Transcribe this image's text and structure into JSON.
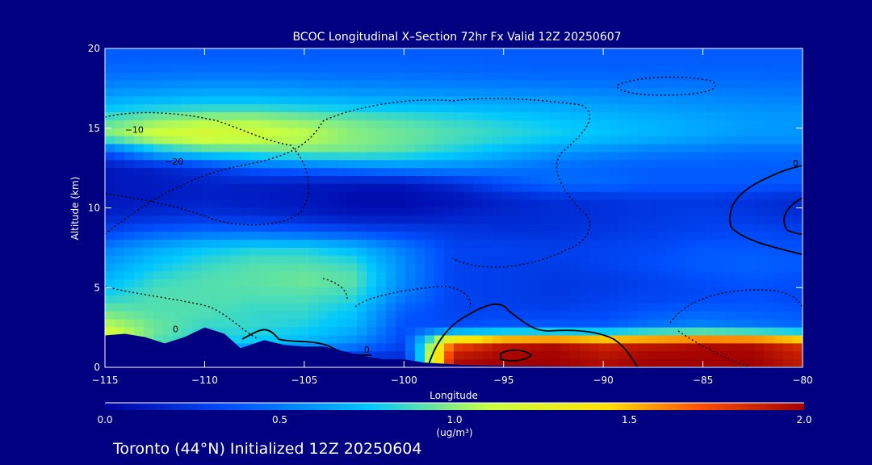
{
  "chart_data": {
    "type": "heatmap",
    "title": "BCOC Longitudinal X–Section 72hr  Fx Valid 12Z 20250607",
    "xlabel": "Longitude",
    "ylabel": "Altitude (km)",
    "xlim": [
      -115,
      -80
    ],
    "ylim": [
      0,
      20
    ],
    "x_ticks": [
      -115,
      -110,
      -105,
      -100,
      -95,
      -90,
      -85,
      -80
    ],
    "x_tick_labels": [
      "−115",
      "−110",
      "−105",
      "−100",
      "−95",
      "−90",
      "−85",
      "−80"
    ],
    "y_ticks": [
      0,
      5,
      10,
      15,
      20
    ],
    "y_tick_labels": [
      "0",
      "5",
      "10",
      "15",
      "20"
    ],
    "colorbar": {
      "min": 0.0,
      "max": 2.0,
      "ticks": [
        0.0,
        0.5,
        1.0,
        1.5,
        2.0
      ],
      "tick_labels": [
        "0.0",
        "0.5",
        "1.0",
        "1.5",
        "2.0"
      ],
      "unit_label": "(ug/m³)",
      "colors": [
        "#0000a0",
        "#0050ff",
        "#00c8ff",
        "#c8ff40",
        "#ffe000",
        "#ff5000",
        "#a00000"
      ]
    },
    "field": {
      "description_levels": "value (ug/m3) sampled on grid",
      "x": [
        -115,
        -112.5,
        -110,
        -107.5,
        -105,
        -102.5,
        -100,
        -97.5,
        -95,
        -92.5,
        -90,
        -87.5,
        -85,
        -82.5,
        -80
      ],
      "y": [
        0.5,
        1.5,
        2.5,
        3.5,
        4.5,
        5.5,
        6.5,
        7.5,
        8.5,
        9.5,
        10.5,
        11.5,
        12.5,
        13.5,
        14.5,
        15.5,
        16.5,
        17.5,
        18.5,
        19.5
      ],
      "values": [
        [
          0.45,
          0.4,
          0.35,
          0.3,
          0.25,
          0.2,
          0.18,
          1.95,
          2.0,
          2.0,
          1.95,
          2.0,
          2.0,
          2.0,
          1.9
        ],
        [
          1.3,
          0.9,
          0.8,
          0.75,
          0.7,
          0.55,
          0.3,
          1.7,
          1.9,
          1.95,
          1.85,
          1.9,
          1.95,
          1.95,
          1.8
        ],
        [
          1.1,
          0.95,
          0.85,
          0.85,
          0.8,
          0.7,
          0.35,
          0.35,
          0.4,
          0.4,
          0.4,
          0.5,
          0.55,
          0.5,
          0.45
        ],
        [
          0.95,
          0.9,
          0.9,
          0.85,
          0.85,
          0.75,
          0.4,
          0.3,
          0.3,
          0.3,
          0.32,
          0.38,
          0.42,
          0.4,
          0.38
        ],
        [
          0.8,
          0.9,
          0.9,
          0.9,
          0.9,
          0.85,
          0.5,
          0.3,
          0.28,
          0.25,
          0.28,
          0.3,
          0.32,
          0.35,
          0.32
        ],
        [
          0.7,
          0.85,
          0.9,
          0.92,
          0.95,
          0.92,
          0.55,
          0.3,
          0.28,
          0.25,
          0.26,
          0.3,
          0.35,
          0.38,
          0.35
        ],
        [
          0.6,
          0.75,
          0.85,
          0.9,
          0.9,
          0.85,
          0.55,
          0.3,
          0.28,
          0.28,
          0.3,
          0.35,
          0.4,
          0.42,
          0.4
        ],
        [
          0.5,
          0.65,
          0.75,
          0.8,
          0.8,
          0.7,
          0.5,
          0.3,
          0.3,
          0.28,
          0.3,
          0.32,
          0.38,
          0.38,
          0.35
        ],
        [
          0.3,
          0.4,
          0.45,
          0.45,
          0.4,
          0.35,
          0.3,
          0.25,
          0.22,
          0.22,
          0.25,
          0.28,
          0.3,
          0.32,
          0.3
        ],
        [
          0.15,
          0.2,
          0.22,
          0.2,
          0.15,
          0.1,
          0.1,
          0.15,
          0.18,
          0.2,
          0.22,
          0.25,
          0.28,
          0.25,
          0.2
        ],
        [
          0.1,
          0.12,
          0.15,
          0.12,
          0.1,
          0.05,
          0.05,
          0.08,
          0.15,
          0.2,
          0.22,
          0.25,
          0.25,
          0.22,
          0.18
        ],
        [
          0.1,
          0.12,
          0.15,
          0.15,
          0.12,
          0.1,
          0.1,
          0.2,
          0.35,
          0.45,
          0.45,
          0.4,
          0.4,
          0.4,
          0.38
        ],
        [
          0.1,
          0.15,
          0.25,
          0.4,
          0.45,
          0.5,
          0.55,
          0.55,
          0.5,
          0.45,
          0.42,
          0.4,
          0.4,
          0.4,
          0.4
        ],
        [
          0.35,
          0.7,
          0.85,
          0.9,
          0.95,
          0.95,
          0.9,
          0.8,
          0.7,
          0.6,
          0.55,
          0.5,
          0.48,
          0.45,
          0.45
        ],
        [
          1.0,
          1.15,
          1.2,
          1.15,
          1.1,
          1.0,
          0.95,
          0.9,
          0.85,
          0.8,
          0.75,
          0.7,
          0.65,
          0.6,
          0.6
        ],
        [
          0.9,
          1.0,
          1.05,
          1.05,
          1.0,
          0.95,
          0.9,
          0.85,
          0.8,
          0.75,
          0.72,
          0.68,
          0.65,
          0.62,
          0.6
        ],
        [
          0.7,
          0.75,
          0.78,
          0.78,
          0.75,
          0.72,
          0.7,
          0.68,
          0.66,
          0.64,
          0.62,
          0.6,
          0.58,
          0.56,
          0.55
        ],
        [
          0.55,
          0.58,
          0.6,
          0.6,
          0.58,
          0.56,
          0.55,
          0.54,
          0.53,
          0.52,
          0.5,
          0.5,
          0.5,
          0.48,
          0.48
        ],
        [
          0.45,
          0.46,
          0.47,
          0.47,
          0.46,
          0.45,
          0.45,
          0.44,
          0.43,
          0.42,
          0.42,
          0.42,
          0.42,
          0.42,
          0.42
        ],
        [
          0.4,
          0.4,
          0.4,
          0.4,
          0.4,
          0.4,
          0.4,
          0.4,
          0.4,
          0.4,
          0.4,
          0.4,
          0.4,
          0.4,
          0.4
        ]
      ]
    },
    "terrain": {
      "lon": [
        -115,
        -114,
        -113,
        -112,
        -111,
        -110,
        -109,
        -108.2,
        -107,
        -106,
        -105,
        -104,
        -103,
        -102,
        -101,
        -100,
        -99,
        -97,
        -95,
        -90,
        -85,
        -80
      ],
      "alt": [
        2.0,
        2.1,
        1.9,
        1.5,
        1.9,
        2.5,
        2.1,
        1.2,
        1.7,
        1.4,
        1.3,
        1.3,
        1.0,
        0.7,
        0.5,
        0.5,
        0.3,
        0.15,
        0.1,
        0.05,
        0.05,
        0.05
      ]
    },
    "contour_labels": [
      {
        "text": "−10",
        "x": -114.0,
        "y": 14.7
      },
      {
        "text": "−20",
        "x": -112.0,
        "y": 12.7
      },
      {
        "text": "0",
        "x": -111.6,
        "y": 2.2
      },
      {
        "text": "0",
        "x": -102.0,
        "y": 0.9
      },
      {
        "text": "0",
        "x": -80.5,
        "y": 12.6
      }
    ],
    "footer_text": "Toronto (44°N) Initialized 12Z 20250604"
  }
}
